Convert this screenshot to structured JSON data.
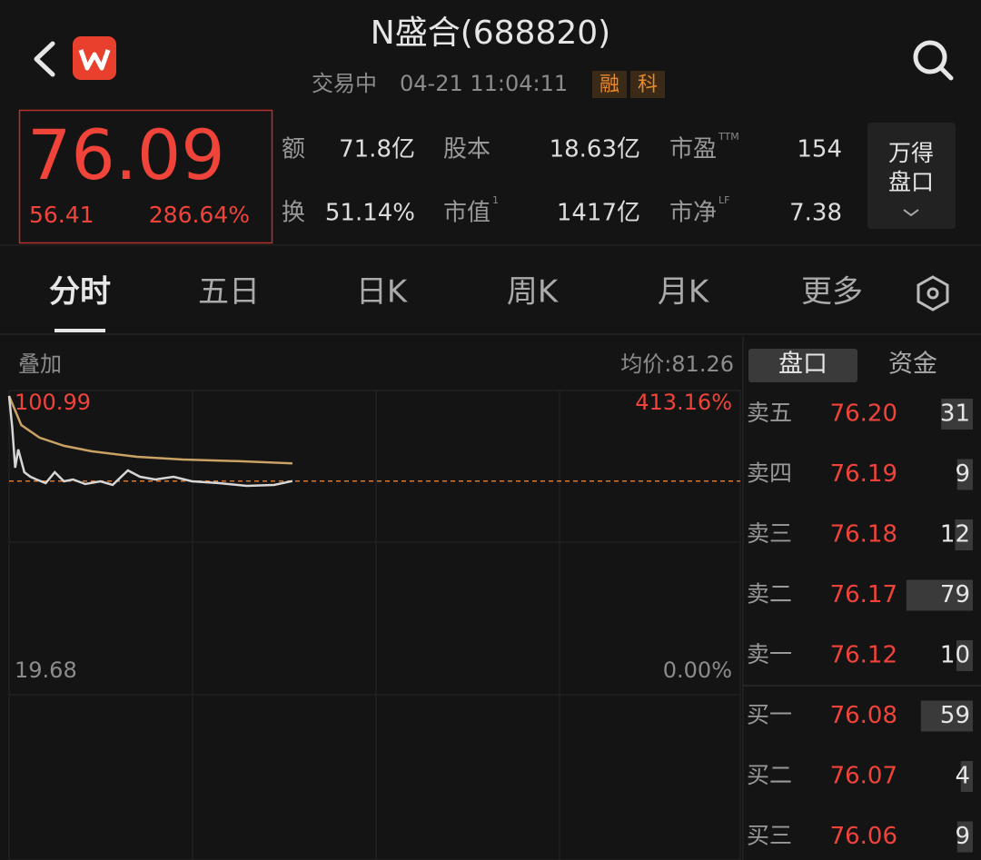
{
  "header": {
    "title": "N盛合(688820)",
    "status": "交易中",
    "datetime": "04-21 11:04:11",
    "badges": [
      "融",
      "科"
    ]
  },
  "quote": {
    "price": 76.09,
    "change": 56.41,
    "change_pct": "286.64%"
  },
  "stats": [
    {
      "label": "额",
      "value": "71.8亿"
    },
    {
      "label": "换",
      "value": "51.14%"
    },
    {
      "label": "股本",
      "value": "18.63亿"
    },
    {
      "label": "市值",
      "sup": "1",
      "value": "1417亿"
    },
    {
      "label": "市盈",
      "sup": "TTM",
      "value": "154"
    },
    {
      "label": "市净",
      "sup": "LF",
      "value": "7.38"
    }
  ],
  "wind_button": [
    "万得",
    "盘口"
  ],
  "tabs": [
    "分时",
    "五日",
    "日K",
    "周K",
    "月K",
    "更多"
  ],
  "intraday": {
    "overlay_label": "叠加",
    "avg_price": "均价:81.26",
    "ylim": [
      19.68,
      100.99
    ],
    "pct_labels": [
      "413.16%",
      "0.00%"
    ],
    "xlim": [
      0,
      240
    ],
    "minutes": [
      0,
      1,
      2,
      3,
      5,
      7,
      9,
      12,
      15,
      18,
      21,
      25,
      30,
      34,
      39,
      43,
      48,
      54,
      60,
      69,
      78,
      87,
      93
    ],
    "price": [
      100.99,
      91.96,
      80.0,
      85.31,
      78.67,
      77.34,
      76.54,
      75.48,
      78.67,
      76.01,
      76.54,
      75.22,
      76.01,
      74.95,
      79.2,
      77.34,
      76.54,
      77.34,
      76.01,
      75.48,
      74.68,
      74.95,
      76.09
    ],
    "avg_minutes": [
      0,
      4,
      10,
      18,
      27,
      42,
      57,
      75,
      93
    ],
    "avg": [
      100.99,
      92.5,
      88.8,
      86.4,
      84.8,
      83.2,
      82.4,
      81.9,
      81.26
    ]
  },
  "order_book": {
    "tabs": [
      "盘口",
      "资金"
    ],
    "rows": [
      {
        "label": "卖五",
        "price": "76.20",
        "volume": 31
      },
      {
        "label": "卖四",
        "price": "76.19",
        "volume": 9
      },
      {
        "label": "卖三",
        "price": "76.18",
        "volume": 12
      },
      {
        "label": "卖二",
        "price": "76.17",
        "volume": 79
      },
      {
        "label": "卖一",
        "price": "76.12",
        "volume": 10
      },
      {
        "label": "买一",
        "price": "76.08",
        "volume": 59
      },
      {
        "label": "买二",
        "price": "76.07",
        "volume": 4
      },
      {
        "label": "买三",
        "price": "76.06",
        "volume": 9
      }
    ]
  }
}
